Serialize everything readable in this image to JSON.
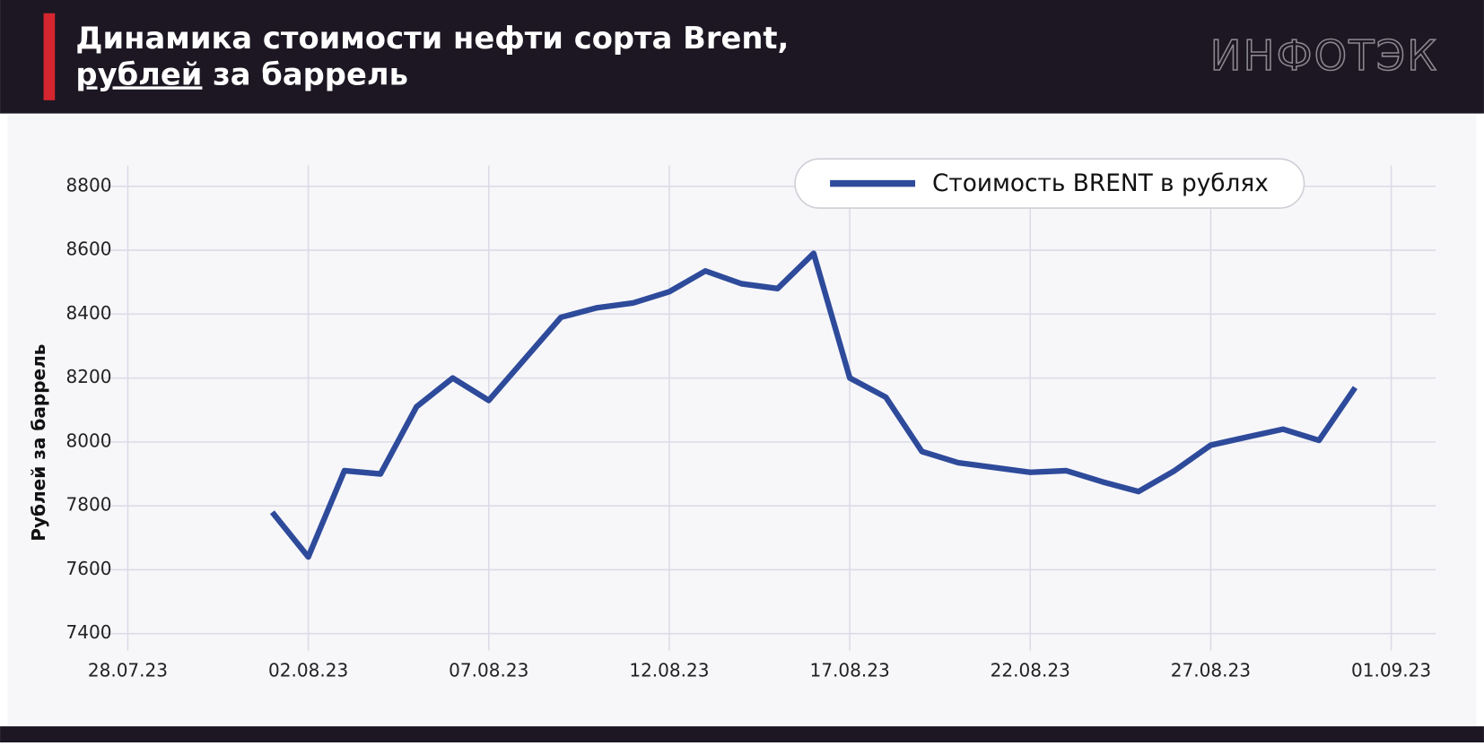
{
  "header": {
    "title_line1": "Динамика стоимости нефти сорта Brent,",
    "title_line2_underlined": "рублей",
    "title_line2_rest": " за баррель",
    "logo": "ИНФОТЭК"
  },
  "chart_data": {
    "type": "line",
    "y_label": "Рублей за баррель",
    "x": [
      "01.08.23",
      "02.08.23",
      "03.08.23",
      "04.08.23",
      "05.08.23",
      "06.08.23",
      "07.08.23",
      "08.08.23",
      "09.08.23",
      "10.08.23",
      "11.08.23",
      "12.08.23",
      "13.08.23",
      "14.08.23",
      "15.08.23",
      "16.08.23",
      "17.08.23",
      "18.08.23",
      "19.08.23",
      "20.08.23",
      "21.08.23",
      "22.08.23",
      "23.08.23",
      "24.08.23",
      "25.08.23",
      "26.08.23",
      "27.08.23",
      "28.08.23",
      "29.08.23",
      "30.08.23",
      "31.08.23"
    ],
    "series": [
      {
        "name": "Стоимость BRENT в рублях",
        "color": "#2e4a9a",
        "values": [
          7780,
          7640,
          7910,
          7900,
          8110,
          8200,
          8130,
          8260,
          8390,
          8420,
          8435,
          8470,
          8535,
          8495,
          8480,
          8590,
          8200,
          8140,
          7970,
          7935,
          7920,
          7905,
          7910,
          7875,
          7845,
          7910,
          7990,
          8015,
          8040,
          8005,
          8170
        ]
      }
    ],
    "xlim": [
      "28.07.23",
      "01.09.23"
    ],
    "xticks": [
      "28.07.23",
      "02.08.23",
      "07.08.23",
      "12.08.23",
      "17.08.23",
      "22.08.23",
      "27.08.23",
      "01.09.23"
    ],
    "ylim": [
      7400,
      8800
    ],
    "yticks": [
      7400,
      7600,
      7800,
      8000,
      8200,
      8400,
      8600,
      8800
    ],
    "grid": true,
    "legend": "top"
  }
}
